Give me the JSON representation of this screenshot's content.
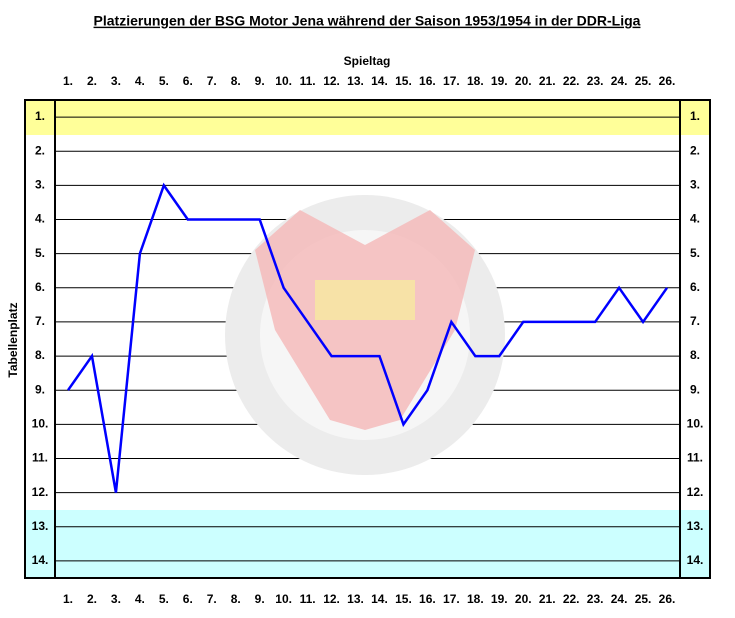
{
  "chart_data": {
    "type": "line",
    "title": "Platzierungen der BSG Motor Jena während der Saison 1953/1954 in der DDR-Liga",
    "x_label": "Spieltag",
    "y_label": "Tabellenplatz",
    "categories": [
      "1.",
      "2.",
      "3.",
      "4.",
      "5.",
      "6.",
      "7.",
      "8.",
      "9.",
      "10.",
      "11.",
      "12.",
      "13.",
      "14.",
      "15.",
      "16.",
      "17.",
      "18.",
      "19.",
      "20.",
      "21.",
      "22.",
      "23.",
      "24.",
      "25.",
      "26."
    ],
    "values": [
      9,
      8,
      12,
      5,
      3,
      4,
      4,
      4,
      4,
      6,
      7,
      8,
      8,
      8,
      10,
      9,
      7,
      8,
      8,
      7,
      7,
      7,
      7,
      6,
      7,
      6
    ],
    "color": "#0000ff",
    "ylim": [
      0.5,
      14.5
    ],
    "y_inverted": true,
    "yticks": [
      {
        "value": 1,
        "label": "1."
      },
      {
        "value": 2,
        "label": "2."
      },
      {
        "value": 3,
        "label": "3."
      },
      {
        "value": 4,
        "label": "4."
      },
      {
        "value": 5,
        "label": "5."
      },
      {
        "value": 6,
        "label": "6."
      },
      {
        "value": 7,
        "label": "7."
      },
      {
        "value": 8,
        "label": "8."
      },
      {
        "value": 9,
        "label": "9."
      },
      {
        "value": 10,
        "label": "10."
      },
      {
        "value": 11,
        "label": "11."
      },
      {
        "value": 12,
        "label": "12."
      },
      {
        "value": 13,
        "label": "13."
      },
      {
        "value": 14,
        "label": "14."
      }
    ],
    "grid": true
  }
}
